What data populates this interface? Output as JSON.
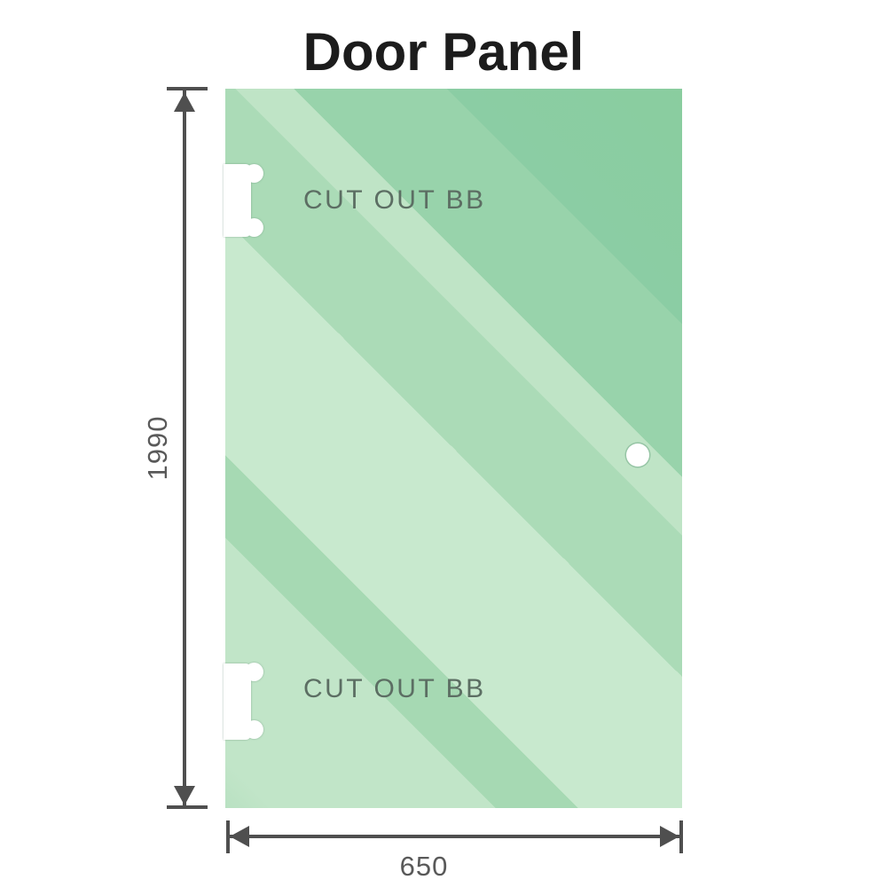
{
  "title": "Door Panel",
  "dimensions": {
    "height_label": "1990",
    "width_label": "650"
  },
  "panel": {
    "cutouts": [
      {
        "position": "top",
        "label": "CUT OUT BB"
      },
      {
        "position": "bottom",
        "label": "CUT OUT BB"
      }
    ]
  },
  "colors": {
    "glass_base": "#8ecfa7",
    "glass_light": "#c8e9ce",
    "glass_dark": "#8acd9f",
    "dimension_line": "#4f4f4f",
    "dimension_text": "#595959",
    "cutout_text": "#5c6e63",
    "title_text": "#1c1c1c",
    "background": "#ffffff"
  }
}
